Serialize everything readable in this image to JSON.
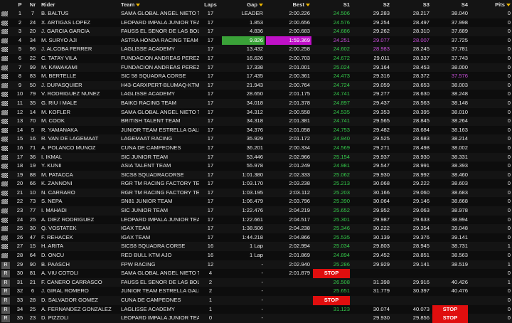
{
  "columns": {
    "p": "P",
    "nr": "Nr",
    "rider": "Rider",
    "team": "Team",
    "laps": "Laps",
    "gap": "Gap",
    "best": "Best",
    "s1": "S1",
    "s2": "S2",
    "s3": "S3",
    "s4": "S4",
    "pits": "Pits"
  },
  "rows": [
    {
      "flag": "chequered",
      "p": "1",
      "nr": "7",
      "rider": "B. BALTUS",
      "team": "SAMA GLOBAL ANGEL NIETO T...",
      "laps": "17",
      "gap": "LEADER",
      "best": "2:00.226",
      "s1": "24.506",
      "s2": "29.283",
      "s3": "28.217",
      "s4": "38.040",
      "pits": "0"
    },
    {
      "flag": "chequered",
      "p": "2",
      "nr": "24",
      "rider": "X. ARTIGAS LOPEZ",
      "team": "LEOPARD IMPALA JUNIOR TEAM",
      "laps": "17",
      "gap": "1.853",
      "best": "2:00.656",
      "s1": "24.576",
      "s2": "29.254",
      "s3": "28.497",
      "s4": "37.998",
      "pits": "0"
    },
    {
      "flag": "chequered",
      "p": "3",
      "nr": "20",
      "rider": "J. GARCIA GARCIA",
      "team": "FAUSS EL SENOR DE LAS BOLS...",
      "laps": "17",
      "gap": "4.836",
      "best": "2:00.683",
      "s1": "24.686",
      "s2": "29.262",
      "s3": "28.310",
      "s4": "37.689",
      "pits": "0"
    },
    {
      "flag": "chequered",
      "p": "4",
      "nr": "34",
      "rider": "M. SURYO AJI",
      "team": "ASTRA HONDA RACING TEAM",
      "laps": "17",
      "gap": "9.826",
      "best": "1:59.369",
      "s1": "24.251",
      "s2": "29.077",
      "s3": "28.007",
      "s4": "37.725",
      "pits": "0"
    },
    {
      "flag": "chequered",
      "p": "5",
      "nr": "96",
      "rider": "J. ALCOBA FERRER",
      "team": "LAGLISSE ACADEMY",
      "laps": "17",
      "gap": "13.432",
      "best": "2:00.258",
      "s1": "24.602",
      "s2": "28.983",
      "s3": "28.245",
      "s4": "37.781",
      "pits": "0"
    },
    {
      "flag": "chequered",
      "p": "6",
      "nr": "22",
      "rider": "C. TATAY VILA",
      "team": "FUNDACION ANDREAS PEREZ ...",
      "laps": "17",
      "gap": "16.626",
      "best": "2:00.703",
      "s1": "24.672",
      "s2": "29.011",
      "s3": "28.337",
      "s4": "37.743",
      "pits": "0"
    },
    {
      "flag": "chequered",
      "p": "7",
      "nr": "99",
      "rider": "M. KAWAKAMI",
      "team": "FUNDACION ANDREAS PEREZ ...",
      "laps": "17",
      "gap": "17.338",
      "best": "2:01.001",
      "s1": "25.024",
      "s2": "29.164",
      "s3": "28.453",
      "s4": "38.000",
      "pits": "0"
    },
    {
      "flag": "chequered",
      "p": "8",
      "nr": "83",
      "rider": "M. BERTELLE",
      "team": "SIC 58 SQUADRA CORSE",
      "laps": "17",
      "gap": "17.435",
      "best": "2:00.361",
      "s1": "24.473",
      "s2": "29.316",
      "s3": "28.372",
      "s4": "37.576",
      "pits": "0"
    },
    {
      "flag": "chequered",
      "p": "9",
      "nr": "50",
      "rider": "J. DUPASQUIER",
      "team": "H43-CARXPERT-BLUMAQ-KTM",
      "laps": "17",
      "gap": "21.943",
      "best": "2:00.764",
      "s1": "24.724",
      "s2": "29.059",
      "s3": "28.653",
      "s4": "38.003",
      "pits": "0"
    },
    {
      "flag": "chequered",
      "p": "10",
      "nr": "79",
      "rider": "V. RODRIGUEZ NUNEZ",
      "team": "LAGLISSE ACADEMY",
      "laps": "17",
      "gap": "28.650",
      "best": "2:01.175",
      "s1": "24.741",
      "s2": "29.277",
      "s3": "28.630",
      "s4": "38.248",
      "pits": "0"
    },
    {
      "flag": "chequered",
      "p": "11",
      "nr": "35",
      "rider": "G. RIU I MALE",
      "team": "BAIKO RACING TEAM",
      "laps": "17",
      "gap": "34.018",
      "best": "2:01.378",
      "s1": "24.897",
      "s2": "29.437",
      "s3": "28.563",
      "s4": "38.148",
      "pits": "0"
    },
    {
      "flag": "chequered",
      "p": "12",
      "nr": "14",
      "rider": "M. KOFLER",
      "team": "SAMA GLOBAL ANGEL NIETO T...",
      "laps": "17",
      "gap": "34.312",
      "best": "2:00.558",
      "s1": "24.535",
      "s2": "29.353",
      "s3": "28.395",
      "s4": "38.010",
      "pits": "0"
    },
    {
      "flag": "chequered",
      "p": "13",
      "nr": "70",
      "rider": "M. COOK",
      "team": "BRITISH TALENT TEAM",
      "laps": "17",
      "gap": "34.318",
      "best": "2:01.381",
      "s1": "24.741",
      "s2": "29.565",
      "s3": "28.845",
      "s4": "38.264",
      "pits": "0"
    },
    {
      "flag": "chequered",
      "p": "14",
      "nr": "5",
      "rider": "R. YAMANAKA",
      "team": "JUNIOR TEAM ESTRELLA GALIC...",
      "laps": "17",
      "gap": "34.376",
      "best": "2:01.058",
      "s1": "24.753",
      "s2": "29.482",
      "s3": "28.684",
      "s4": "38.163",
      "pits": "0"
    },
    {
      "flag": "chequered",
      "p": "15",
      "nr": "16",
      "rider": "R. VAN DE LAGEMAAT",
      "team": "LAGEMAAT RACING",
      "laps": "17",
      "gap": "35.929",
      "best": "2:01.172",
      "s1": "24.940",
      "s2": "29.525",
      "s3": "28.683",
      "s4": "38.214",
      "pits": "0"
    },
    {
      "flag": "chequered",
      "p": "16",
      "nr": "71",
      "rider": "A. POLANCO MUNOZ",
      "team": "CUNA DE CAMPEONES",
      "laps": "17",
      "gap": "36.201",
      "best": "2:00.334",
      "s1": "24.569",
      "s2": "29.271",
      "s3": "28.498",
      "s4": "38.002",
      "pits": "0"
    },
    {
      "flag": "chequered",
      "p": "17",
      "nr": "36",
      "rider": "I. IKMAL",
      "team": "SIC JUNIOR TEAM",
      "laps": "17",
      "gap": "53.446",
      "best": "2:02.966",
      "s1": "25.154",
      "s2": "29.937",
      "s3": "28.930",
      "s4": "38.331",
      "pits": "0"
    },
    {
      "flag": "chequered",
      "p": "18",
      "nr": "19",
      "rider": "Y. KUNII",
      "team": "ASIA TALENT TEAM",
      "laps": "17",
      "gap": "55.978",
      "best": "2:01.249",
      "s1": "24.981",
      "s2": "29.547",
      "s3": "28.991",
      "s4": "38.393",
      "pits": "0"
    },
    {
      "flag": "chequered",
      "p": "19",
      "nr": "88",
      "rider": "M. PATACCA",
      "team": "SICS8 SQUADRACORSE",
      "laps": "17",
      "gap": "1:01.380",
      "best": "2:02.333",
      "s1": "25.062",
      "s2": "29.930",
      "s3": "28.992",
      "s4": "38.460",
      "pits": "0"
    },
    {
      "flag": "chequered",
      "p": "20",
      "nr": "66",
      "rider": "K. ZANNONI",
      "team": "RGR TM RACING FACTORY TEAM",
      "laps": "17",
      "gap": "1:03.170",
      "best": "2:03.238",
      "s1": "25.213",
      "s2": "30.068",
      "s3": "29.222",
      "s4": "38.603",
      "pits": "0"
    },
    {
      "flag": "chequered",
      "p": "21",
      "nr": "10",
      "rider": "N. CARRARO",
      "team": "RGR TM RACING FACTORY TEAM",
      "laps": "17",
      "gap": "1:03.195",
      "best": "2:03.112",
      "s1": "25.203",
      "s2": "30.166",
      "s3": "29.060",
      "s4": "38.683",
      "pits": "0"
    },
    {
      "flag": "chequered",
      "p": "22",
      "nr": "73",
      "rider": "S. NEPA",
      "team": "SN81 JUNIOR TEAM",
      "laps": "17",
      "gap": "1:06.479",
      "best": "2:03.796",
      "s1": "25.390",
      "s2": "30.064",
      "s3": "29.146",
      "s4": "38.668",
      "pits": "0"
    },
    {
      "flag": "chequered",
      "p": "23",
      "nr": "77",
      "rider": "I. MAHADI",
      "team": "SIC JUNIOR TEAM",
      "laps": "17",
      "gap": "1:22.476",
      "best": "2:04.219",
      "s1": "25.652",
      "s2": "29.952",
      "s3": "29.063",
      "s4": "38.978",
      "pits": "0"
    },
    {
      "flag": "chequered",
      "p": "24",
      "nr": "25",
      "rider": "A. DIEZ RODRIGUEZ",
      "team": "LEOPARD IMPALA JUNIOR TEAM",
      "laps": "17",
      "gap": "1:22.661",
      "best": "2:04.517",
      "s1": "25.301",
      "s2": "29.987",
      "s3": "29.633",
      "s4": "38.994",
      "pits": "0"
    },
    {
      "flag": "chequered",
      "p": "25",
      "nr": "30",
      "rider": "Q. VOSTATEK",
      "team": "IGAX TEAM",
      "laps": "17",
      "gap": "1:38.506",
      "best": "2:04.238",
      "s1": "25.346",
      "s2": "30.222",
      "s3": "29.354",
      "s4": "39.048",
      "pits": "0"
    },
    {
      "flag": "chequered",
      "p": "26",
      "nr": "47",
      "rider": "F. REHACEK",
      "team": "IGAX TEAM",
      "laps": "17",
      "gap": "1:44.218",
      "best": "2:04.866",
      "s1": "25.535",
      "s2": "30.139",
      "s3": "29.376",
      "s4": "39.141",
      "pits": "0"
    },
    {
      "flag": "chequered",
      "p": "27",
      "nr": "15",
      "rider": "H. ARITA",
      "team": "SICS8 SQUADRA CORSE",
      "laps": "16",
      "gap": "1 Lap",
      "best": "2:02.994",
      "s1": "25.034",
      "s2": "29.803",
      "s3": "28.945",
      "s4": "38.731",
      "pits": "1"
    },
    {
      "flag": "chequered",
      "p": "28",
      "nr": "64",
      "rider": "D. ONCU",
      "team": "RED BULL KTM AJO",
      "laps": "16",
      "gap": "1 Lap",
      "best": "2:01.869",
      "s1": "24.894",
      "s2": "29.452",
      "s3": "28.851",
      "s4": "38.563",
      "pits": "0"
    },
    {
      "flag": "retired",
      "p": "29",
      "nr": "90",
      "rider": "B. PAASCH",
      "team": "FPW RACING",
      "laps": "12",
      "gap": "-",
      "best": "2:02.940",
      "s1": "25.286",
      "s2": "29.929",
      "s3": "29.141",
      "s4": "38.519",
      "pits": "1"
    },
    {
      "flag": "retired",
      "p": "30",
      "nr": "81",
      "rider": "A. VIU COTOLI",
      "team": "SAMA GLOBAL ANGEL NIETO T...",
      "laps": "4",
      "gap": "-",
      "best": "2:01.879",
      "s1": "STOP",
      "s2": "",
      "s3": "",
      "s4": "",
      "pits": "0"
    },
    {
      "flag": "retired",
      "p": "31",
      "nr": "21",
      "rider": "F. CANERO CARRASCO",
      "team": "FAUSS EL SENOR DE LAS BOLS...",
      "laps": "2",
      "gap": "-",
      "best": "",
      "s1": "26.508",
      "s2": "31.398",
      "s3": "29.916",
      "s4": "40.426",
      "pits": "1"
    },
    {
      "flag": "retired",
      "p": "32",
      "nr": "6",
      "rider": "J. GIRAL ROMERO",
      "team": "JUNIOR TEAM ESTRELLA GALIC...",
      "laps": "2",
      "gap": "-",
      "best": "",
      "s1": "25.651",
      "s2": "31.779",
      "s3": "30.397",
      "s4": "40.476",
      "pits": "0"
    },
    {
      "flag": "retired",
      "p": "33",
      "nr": "28",
      "rider": "D. SALVADOR GOMEZ",
      "team": "CUNA DE CAMPEONES",
      "laps": "1",
      "gap": "-",
      "best": "",
      "s1": "STOP",
      "s2": "",
      "s3": "",
      "s4": "",
      "pits": "0"
    },
    {
      "flag": "retired",
      "p": "34",
      "nr": "25",
      "rider": "A. FERNANDEZ GONZALEZ",
      "team": "LAGLISSE ACADEMY",
      "laps": "1",
      "gap": "-",
      "best": "",
      "s1": "31.123",
      "s2": "30.074",
      "s3": "40.073",
      "s4": "STOP",
      "pits": "0"
    },
    {
      "flag": "retired",
      "p": "35",
      "nr": "23",
      "rider": "D. PIZZOLI",
      "team": "LEOPARD IMPALA JUNIOR TEAM",
      "laps": "0",
      "gap": "-",
      "best": "",
      "s1": "",
      "s2": "29.930",
      "s3": "29.856",
      "s4": "STOP",
      "pits": "0"
    }
  ],
  "highlights": {
    "green_text": [
      "s1"
    ],
    "purple_values": {
      "row_4_s1": "24.251",
      "row_4_s2": "29.077",
      "row_4_s3": "28.007",
      "row_5_s2": "28.983",
      "row_8_s4": "37.576"
    },
    "colors": {
      "green": "#35c94b",
      "purple": "#c74fd9",
      "purple_cell": "#c011c8",
      "green_cell": "#3aa238",
      "stop": "#e00e0e",
      "header_arrow": "#f0b800"
    }
  }
}
